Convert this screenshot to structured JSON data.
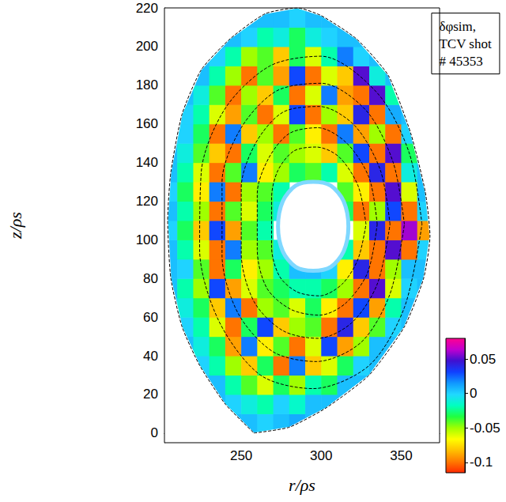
{
  "chart_data": {
    "type": "heatmap",
    "annotation": [
      "δφsim,",
      "TCV shot",
      "# 45353"
    ],
    "x_label": "r/ρs",
    "y_label": "z/ρs",
    "xlim": [
      202,
      374
    ],
    "xticks": [
      250,
      300,
      350
    ],
    "ylim": [
      -5,
      220
    ],
    "yticks": [
      0,
      20,
      40,
      60,
      80,
      100,
      120,
      140,
      160,
      180,
      200,
      220
    ],
    "grid": false,
    "line_style": "dashed",
    "r": [
      205,
      215,
      225,
      235,
      245,
      255,
      265,
      275,
      285,
      295,
      305,
      315,
      325,
      335,
      345,
      355,
      365
    ],
    "z": [
      5,
      15,
      25,
      35,
      45,
      55,
      65,
      75,
      85,
      95,
      105,
      115,
      125,
      135,
      145,
      155,
      165,
      175,
      185,
      195,
      205,
      215
    ],
    "values": [
      [
        null,
        null,
        null,
        null,
        0.005,
        0.005,
        0.0,
        0.005,
        0.01,
        0.005,
        null,
        null,
        null,
        null,
        null,
        null,
        null
      ],
      [
        null,
        null,
        null,
        0.005,
        0.0,
        -0.01,
        -0.02,
        0.0,
        -0.015,
        0.005,
        0.005,
        0.005,
        null,
        null,
        null,
        null,
        null
      ],
      [
        null,
        null,
        0.005,
        0.005,
        -0.02,
        -0.04,
        -0.06,
        -0.03,
        -0.05,
        -0.02,
        -0.03,
        0.005,
        0.005,
        null,
        null,
        null,
        null
      ],
      [
        null,
        0.005,
        0.0,
        -0.02,
        -0.05,
        -0.08,
        -0.03,
        -0.1,
        0.02,
        -0.08,
        -0.06,
        -0.03,
        0.0,
        0.005,
        null,
        null,
        null
      ],
      [
        null,
        0.005,
        -0.01,
        -0.03,
        -0.09,
        0.02,
        -0.07,
        -0.04,
        -0.1,
        -0.06,
        0.03,
        -0.09,
        -0.05,
        0.005,
        0.005,
        null,
        null
      ],
      [
        0.005,
        0.0,
        -0.02,
        -0.06,
        -0.1,
        -0.03,
        0.03,
        -0.08,
        -0.05,
        -0.04,
        -0.1,
        0.04,
        -0.08,
        -0.04,
        0.0,
        0.005,
        null
      ],
      [
        0.005,
        -0.01,
        -0.03,
        -0.08,
        0.02,
        -0.1,
        -0.05,
        -0.04,
        -0.06,
        -0.03,
        -0.07,
        -0.1,
        0.03,
        -0.09,
        -0.02,
        0.005,
        0.005
      ],
      [
        0.005,
        -0.02,
        -0.05,
        0.03,
        -0.09,
        -0.06,
        -0.04,
        -0.03,
        -0.02,
        -0.02,
        -0.03,
        -0.05,
        -0.1,
        0.05,
        -0.06,
        0.0,
        0.005
      ],
      [
        0.005,
        0.0,
        -0.04,
        -0.1,
        -0.03,
        -0.07,
        -0.05,
        -0.02,
        0.005,
        0.005,
        0.0,
        -0.07,
        0.04,
        -0.1,
        -0.05,
        0.005,
        0.005
      ],
      [
        0.005,
        -0.02,
        -0.06,
        -0.1,
        0.02,
        -0.05,
        -0.04,
        -0.01,
        null,
        null,
        null,
        -0.02,
        -0.08,
        -0.1,
        0.05,
        -0.1,
        0.0
      ],
      [
        0.0,
        -0.03,
        -0.08,
        0.03,
        -0.09,
        -0.04,
        -0.02,
        null,
        null,
        null,
        null,
        null,
        -0.06,
        0.04,
        -0.1,
        0.06,
        -0.09
      ],
      [
        0.005,
        -0.02,
        -0.05,
        -0.1,
        -0.04,
        -0.06,
        -0.03,
        -0.01,
        null,
        null,
        null,
        -0.03,
        -0.1,
        -0.05,
        0.03,
        -0.1,
        0.0
      ],
      [
        0.0,
        -0.03,
        -0.07,
        0.02,
        -0.1,
        -0.05,
        -0.04,
        -0.02,
        null,
        null,
        null,
        -0.04,
        -0.07,
        -0.1,
        0.05,
        -0.06,
        0.005
      ],
      [
        0.005,
        -0.02,
        -0.06,
        -0.1,
        -0.04,
        0.02,
        -0.07,
        -0.05,
        -0.03,
        -0.04,
        -0.02,
        -0.06,
        -0.1,
        0.04,
        -0.1,
        -0.01,
        0.005
      ],
      [
        0.005,
        -0.01,
        -0.04,
        -0.08,
        -0.1,
        -0.03,
        -0.06,
        -0.04,
        -0.05,
        -0.06,
        -0.08,
        -0.04,
        0.03,
        -0.1,
        0.05,
        -0.03,
        0.005
      ],
      [
        0.005,
        0.0,
        -0.03,
        -0.1,
        0.02,
        -0.08,
        -0.05,
        -0.1,
        -0.04,
        -0.07,
        -0.1,
        0.02,
        -0.09,
        -0.05,
        -0.1,
        0.0,
        0.005
      ],
      [
        0.005,
        0.0,
        -0.02,
        -0.06,
        -0.09,
        -0.04,
        -0.1,
        -0.06,
        0.03,
        -0.1,
        -0.05,
        -0.08,
        0.04,
        -0.1,
        0.01,
        0.005,
        null
      ],
      [
        null,
        0.005,
        -0.01,
        -0.04,
        -0.1,
        -0.05,
        -0.08,
        -0.03,
        -0.1,
        -0.06,
        0.02,
        -0.09,
        -0.1,
        0.05,
        -0.02,
        0.005,
        null
      ],
      [
        null,
        0.005,
        0.005,
        -0.02,
        -0.05,
        -0.1,
        -0.04,
        -0.09,
        0.03,
        -0.1,
        -0.06,
        -0.08,
        0.05,
        -0.01,
        0.005,
        null,
        null
      ],
      [
        null,
        null,
        0.005,
        0.0,
        -0.02,
        -0.05,
        -0.04,
        -0.08,
        -0.03,
        -0.06,
        -0.02,
        0.02,
        0.0,
        0.005,
        null,
        null,
        null
      ],
      [
        null,
        null,
        null,
        0.005,
        0.005,
        0.0,
        -0.02,
        -0.01,
        -0.03,
        -0.01,
        0.0,
        0.005,
        0.005,
        null,
        null,
        null,
        null
      ],
      [
        null,
        null,
        null,
        null,
        null,
        0.005,
        0.005,
        0.005,
        0.0,
        0.005,
        0.005,
        0.005,
        null,
        null,
        null,
        null,
        null
      ]
    ],
    "color_range": [
      -0.115,
      0.08
    ],
    "color_ticks": [
      0.05,
      0,
      -0.05,
      -0.1
    ],
    "boundary": {
      "r": [
        258,
        280,
        303,
        330,
        352,
        364,
        368,
        365,
        356,
        342,
        322,
        300,
        285,
        265,
        243,
        225,
        213,
        206,
        204,
        206,
        213,
        224,
        240
      ],
      "z": [
        0,
        3,
        13,
        30,
        55,
        80,
        102,
        125,
        155,
        185,
        204,
        216,
        220,
        217,
        204,
        188,
        165,
        135,
        110,
        80,
        55,
        35,
        15
      ]
    },
    "hole": {
      "r": [
        317,
        314,
        306,
        295,
        284,
        276,
        273,
        276,
        284,
        295,
        306,
        314
      ],
      "z": [
        107,
        120,
        128,
        130,
        128,
        120,
        107,
        94,
        86,
        84,
        86,
        94
      ]
    },
    "flux_surfaces": [
      {
        "r": [
          363,
          355,
          335,
          300,
          268,
          240,
          225,
          224,
          236,
          262,
          295,
          330,
          352
        ],
        "z": [
          108,
          145,
          176,
          195,
          190,
          168,
          135,
          95,
          58,
          30,
          23,
          35,
          65
        ]
      },
      {
        "r": [
          352,
          345,
          328,
          300,
          272,
          250,
          238,
          238,
          248,
          270,
          297,
          325,
          343
        ],
        "z": [
          108,
          140,
          167,
          181,
          177,
          158,
          130,
          92,
          62,
          42,
          37,
          47,
          72
        ]
      },
      {
        "r": [
          343,
          337,
          321,
          299,
          276,
          259,
          250,
          250,
          258,
          276,
          298,
          319,
          335
        ],
        "z": [
          108,
          136,
          159,
          169,
          166,
          150,
          127,
          93,
          68,
          53,
          49,
          57,
          77
        ]
      },
      {
        "r": [
          335,
          330,
          316,
          298,
          280,
          267,
          260,
          260,
          266,
          281,
          299,
          315,
          329
        ],
        "z": [
          108,
          132,
          150,
          158,
          155,
          142,
          124,
          95,
          75,
          64,
          61,
          67,
          83
        ]
      },
      {
        "r": [
          328,
          323,
          311,
          297,
          283,
          273,
          269,
          269,
          274,
          285,
          299,
          313,
          323
        ],
        "z": [
          108,
          128,
          143,
          148,
          146,
          136,
          122,
          96,
          81,
          73,
          71,
          77,
          90
        ]
      }
    ]
  }
}
